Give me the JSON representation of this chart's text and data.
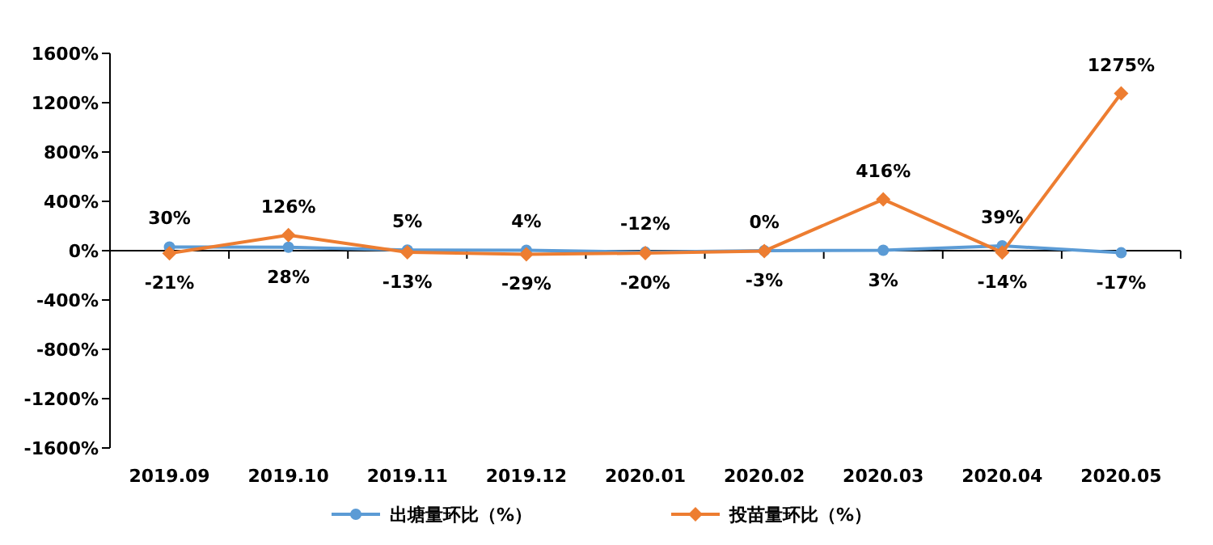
{
  "chart_data": {
    "type": "line",
    "categories": [
      "2019.09",
      "2019.10",
      "2019.11",
      "2019.12",
      "2020.01",
      "2020.02",
      "2020.03",
      "2020.04",
      "2020.05"
    ],
    "series": [
      {
        "name": "出塘量环比（%）",
        "color": "#5b9bd5",
        "marker": "circle",
        "values": [
          30,
          28,
          5,
          4,
          -12,
          0,
          3,
          39,
          -17
        ],
        "value_labels": [
          "30%",
          "28%",
          "5%",
          "4%",
          "-12%",
          "0%",
          "3%",
          "39%",
          "-17%"
        ]
      },
      {
        "name": "投苗量环比（%）",
        "color": "#ed7d31",
        "marker": "diamond",
        "values": [
          -21,
          126,
          -13,
          -29,
          -20,
          -3,
          416,
          -14,
          1275
        ],
        "value_labels": [
          "-21%",
          "126%",
          "-13%",
          "-29%",
          "-20%",
          "-3%",
          "416%",
          "-14%",
          "1275%"
        ]
      }
    ],
    "ylim": [
      -1600,
      1600
    ],
    "yticks": [
      {
        "value": -1600,
        "label": "-1600%"
      },
      {
        "value": -1200,
        "label": "-1200%"
      },
      {
        "value": -800,
        "label": "-800%"
      },
      {
        "value": -400,
        "label": "-400%"
      },
      {
        "value": 0,
        "label": "0%"
      },
      {
        "value": 400,
        "label": "400%"
      },
      {
        "value": 800,
        "label": "800%"
      },
      {
        "value": 1200,
        "label": "1200%"
      },
      {
        "value": 1600,
        "label": "1600%"
      }
    ],
    "legend": "bottom"
  }
}
